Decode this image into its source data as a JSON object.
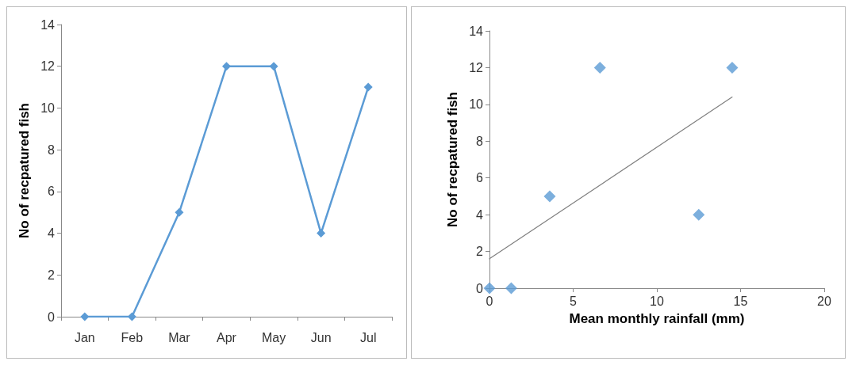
{
  "chart_data": [
    {
      "type": "line",
      "categories": [
        "Jan",
        "Feb",
        "Mar",
        "Apr",
        "May",
        "Jun",
        "Jul"
      ],
      "ylabel": "No of recpatured fish",
      "ylim": [
        0,
        14
      ],
      "yticks": [
        0,
        2,
        4,
        6,
        8,
        10,
        12,
        14
      ],
      "grid": false,
      "marker": "diamond",
      "line_style": "solid",
      "series": [
        {
          "color": "#5b9bd5",
          "values": [
            0,
            0,
            5,
            12,
            12,
            4,
            11
          ]
        }
      ]
    },
    {
      "type": "scatter",
      "xlabel": "Mean monthly rainfall (mm)",
      "ylabel": "No of recpatured fish",
      "xlim": [
        0,
        20
      ],
      "xticks": [
        0,
        5,
        10,
        15,
        20
      ],
      "ylim": [
        0,
        14
      ],
      "yticks": [
        0,
        2,
        4,
        6,
        8,
        10,
        12,
        14
      ],
      "grid": false,
      "marker": "diamond",
      "series": [
        {
          "color": "#5b9bd5",
          "x": [
            0,
            1.3,
            3.6,
            6.6,
            12.5,
            14.5
          ],
          "values": [
            0,
            0,
            5,
            12,
            4,
            12
          ]
        },
        {
          "type": "line",
          "color": "#808080",
          "marker": "none",
          "x": [
            0,
            14.5
          ],
          "values": [
            1.6,
            10.4
          ]
        }
      ]
    }
  ]
}
